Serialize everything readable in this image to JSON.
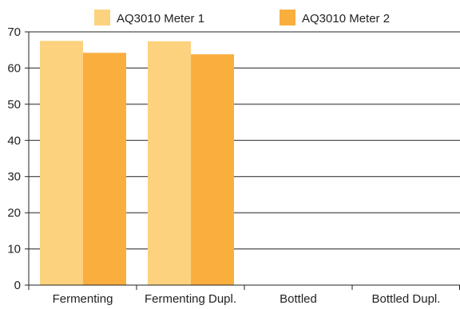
{
  "colors": {
    "series1": "#fdd27e",
    "series2": "#f9ae3e",
    "grid": "#222222",
    "axis": "#222222",
    "background": "#ffffff"
  },
  "chart_data": {
    "type": "bar",
    "categories": [
      "Fermenting",
      "Fermenting Dupl.",
      "Bottled",
      "Bottled Dupl."
    ],
    "series": [
      {
        "name": "AQ3010 Meter 1",
        "values": [
          67.5,
          67.4,
          null,
          null
        ]
      },
      {
        "name": "AQ3010 Meter 2",
        "values": [
          64.2,
          63.8,
          null,
          null
        ]
      }
    ],
    "y_ticks": [
      0,
      10,
      20,
      30,
      40,
      50,
      60,
      70
    ],
    "ylim": [
      0,
      70
    ],
    "grid": true,
    "legend_position": "top"
  }
}
